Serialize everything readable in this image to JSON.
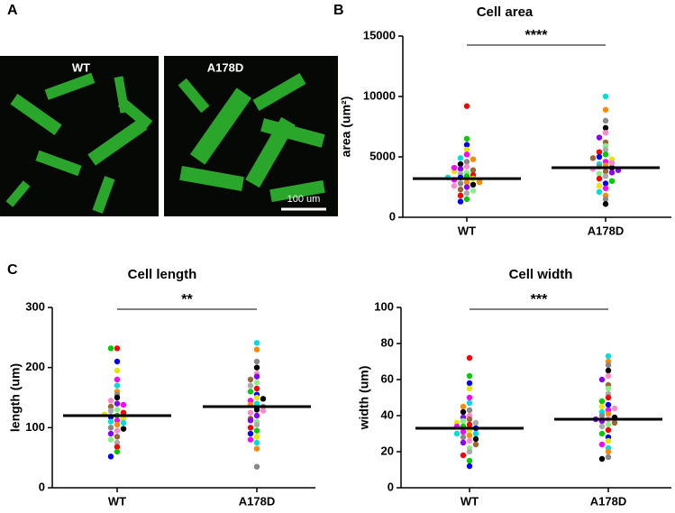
{
  "panels": [
    "A",
    "B",
    "C"
  ],
  "images": [
    {
      "label": "WT"
    },
    {
      "label": "A178D"
    }
  ],
  "scale_bar": "100 um",
  "colors": [
    "#ff0000",
    "#00cc00",
    "#0000ff",
    "#e6e600",
    "#ff00ff",
    "#00dddd",
    "#ff8800",
    "#888888",
    "#000000",
    "#ff88cc",
    "#8800ff",
    "#996633",
    "#88ee88",
    "#aaaaaa"
  ],
  "chart_data": [
    {
      "type": "swarm",
      "title": "Cell area",
      "ylabel": "area (um²)",
      "categories": [
        "WT",
        "A178D"
      ],
      "groups": [
        {
          "values": [
            9200,
            6500,
            6000,
            5600,
            5200,
            4900,
            4800,
            4600,
            4400,
            4200,
            4000,
            3900,
            3700,
            3600,
            3500,
            3400,
            3300,
            3200,
            3100,
            3000,
            2900,
            2800,
            2700,
            2600,
            2500,
            2300,
            2200,
            2000,
            1800,
            1500,
            1300,
            3800,
            4100,
            3300,
            2900
          ],
          "mean": 3200
        },
        {
          "values": [
            10000,
            8900,
            8000,
            7400,
            7000,
            6600,
            6200,
            5900,
            5600,
            5400,
            5200,
            5000,
            4800,
            4600,
            4400,
            4300,
            4200,
            4100,
            4000,
            3900,
            3800,
            3600,
            3400,
            3200,
            3000,
            2800,
            2600,
            2400,
            2100,
            1800,
            1500,
            1100,
            4500,
            3700,
            4900
          ],
          "mean": 4100
        }
      ],
      "significance": "****",
      "ylim": [
        0,
        15000
      ],
      "yticks": [
        0,
        5000,
        10000,
        15000
      ]
    },
    {
      "type": "swarm",
      "title": "Cell length",
      "ylabel": "length (um)",
      "categories": [
        "WT",
        "A178D"
      ],
      "groups": [
        {
          "values": [
            232,
            232,
            210,
            195,
            180,
            170,
            160,
            155,
            150,
            145,
            140,
            135,
            130,
            128,
            125,
            120,
            118,
            115,
            112,
            110,
            105,
            100,
            98,
            95,
            90,
            85,
            80,
            75,
            68,
            60,
            52,
            122,
            138,
            108
          ],
          "mean": 120
        },
        {
          "values": [
            241,
            230,
            210,
            200,
            190,
            185,
            180,
            175,
            170,
            165,
            160,
            155,
            150,
            145,
            140,
            138,
            135,
            130,
            125,
            120,
            115,
            110,
            105,
            100,
            95,
            90,
            85,
            80,
            75,
            65,
            35,
            148,
            128,
            112
          ],
          "mean": 135
        }
      ],
      "significance": "**",
      "ylim": [
        0,
        300
      ],
      "yticks": [
        0,
        100,
        200,
        300
      ]
    },
    {
      "type": "swarm",
      "title": "Cell width",
      "ylabel": "width (um)",
      "categories": [
        "WT",
        "A178D"
      ],
      "groups": [
        {
          "values": [
            72,
            62,
            58,
            55,
            50,
            47,
            45,
            43,
            42,
            40,
            39,
            38,
            37,
            36,
            35,
            34,
            33,
            32,
            31,
            30,
            29,
            28,
            27,
            26,
            25,
            24,
            22,
            20,
            18,
            15,
            12,
            36,
            34,
            30
          ],
          "mean": 33
        },
        {
          "values": [
            73,
            70,
            68,
            65,
            62,
            60,
            57,
            55,
            52,
            50,
            48,
            46,
            45,
            43,
            42,
            41,
            40,
            39,
            38,
            37,
            36,
            35,
            34,
            32,
            30,
            28,
            26,
            24,
            22,
            20,
            17,
            16,
            44,
            38
          ],
          "mean": 38
        }
      ],
      "significance": "***",
      "ylim": [
        0,
        100
      ],
      "yticks": [
        0,
        20,
        40,
        60,
        80,
        100
      ]
    }
  ]
}
